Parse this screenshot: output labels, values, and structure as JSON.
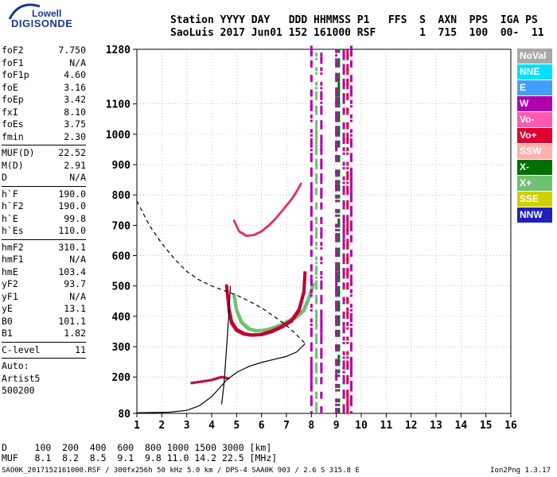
{
  "logo": {
    "line1": "Lowell",
    "line2": "DIGISONDE"
  },
  "header": {
    "row1": "Station YYYY DAY   DDD HHMMSS P1   FFS  S  AXN  PPS  IGA PS",
    "row2": "SaoLuis 2017 Jun01 152 161000 RSF       1  715  100  00-  11"
  },
  "params": {
    "group1": [
      {
        "k": "foF2",
        "v": "7.750"
      },
      {
        "k": "foF1",
        "v": "N/A"
      },
      {
        "k": "foF1p",
        "v": "4.60"
      },
      {
        "k": "foE",
        "v": "3.16"
      },
      {
        "k": "foEp",
        "v": "3.42"
      },
      {
        "k": "fxI",
        "v": "8.10"
      },
      {
        "k": "foEs",
        "v": "3.75"
      },
      {
        "k": "fmin",
        "v": "2.30"
      }
    ],
    "group2": [
      {
        "k": "MUF(D)",
        "v": "22.52"
      },
      {
        "k": "M(D)",
        "v": "2.91"
      },
      {
        "k": "D",
        "v": "N/A"
      }
    ],
    "group3": [
      {
        "k": "h`F",
        "v": "190.0"
      },
      {
        "k": "h`F2",
        "v": "190.0"
      },
      {
        "k": "h`E",
        "v": "99.8"
      },
      {
        "k": "h`Es",
        "v": "110.0"
      }
    ],
    "group4": [
      {
        "k": "hmF2",
        "v": "310.1"
      },
      {
        "k": "hmF1",
        "v": "N/A"
      },
      {
        "k": "hmE",
        "v": "103.4"
      },
      {
        "k": "yF2",
        "v": "93.7"
      },
      {
        "k": "yF1",
        "v": "N/A"
      },
      {
        "k": "yE",
        "v": "13.1"
      },
      {
        "k": "B0",
        "v": "101.1"
      },
      {
        "k": "B1",
        "v": "1.82"
      }
    ],
    "group5": [
      {
        "k": "C-level",
        "v": "11"
      }
    ],
    "group6": [
      "Auto:",
      "Artist5",
      "500200"
    ]
  },
  "legend": [
    {
      "label": "NoVal",
      "color": "#a8a8a8"
    },
    {
      "label": "NNE",
      "color": "#00e0ff"
    },
    {
      "label": "E",
      "color": "#40a0ff"
    },
    {
      "label": "W",
      "color": "#b000b0"
    },
    {
      "label": "Vo-",
      "color": "#ff5ab0"
    },
    {
      "label": "Vo+",
      "color": "#e00030"
    },
    {
      "label": "SSW",
      "color": "#ffb0b0"
    },
    {
      "label": "X-",
      "color": "#007000"
    },
    {
      "label": "X+",
      "color": "#70c070"
    },
    {
      "label": "SSE",
      "color": "#d0d000"
    },
    {
      "label": "NNW",
      "color": "#2020c0"
    }
  ],
  "muf_table": {
    "row1": "D     100  200  400  600  800 1000 1500 3000 [km]",
    "row2": "MUF   8.1  8.2  8.5  9.1  9.8 11.0 14.2 22.5 [MHz]"
  },
  "footer": {
    "left": "SAO0K_2017152161000.RSF / 300fx256h 50 kHz 5.0 km / DPS-4 SAA0K 903 / 2.6 S 315.8 E",
    "right": "Ion2Png 1.3.17"
  },
  "chart_data": {
    "type": "scatter",
    "xlim": [
      1,
      16
    ],
    "ylim": [
      80,
      1280
    ],
    "xticks": [
      1,
      2,
      3,
      4,
      5,
      6,
      7,
      8,
      9,
      10,
      11,
      12,
      13,
      14,
      15,
      16
    ],
    "yticks": [
      80,
      200,
      300,
      400,
      500,
      600,
      700,
      800,
      900,
      1000,
      1100,
      1280
    ],
    "grid": "dotted",
    "profile_line": [
      [
        1.0,
        82
      ],
      [
        2.3,
        84
      ],
      [
        3.0,
        90
      ],
      [
        3.5,
        105
      ],
      [
        4.0,
        135
      ],
      [
        4.6,
        190
      ],
      [
        5.0,
        215
      ],
      [
        5.5,
        235
      ],
      [
        6.0,
        248
      ],
      [
        6.5,
        258
      ],
      [
        7.0,
        268
      ],
      [
        7.4,
        282
      ],
      [
        7.75,
        310
      ]
    ],
    "profile_low_line": [
      [
        4.4,
        110
      ],
      [
        4.5,
        180
      ],
      [
        4.6,
        300
      ],
      [
        4.7,
        420
      ],
      [
        4.75,
        500
      ]
    ],
    "dashed_line": [
      [
        1.0,
        780
      ],
      [
        1.5,
        700
      ],
      [
        2.0,
        640
      ],
      [
        2.5,
        590
      ],
      [
        3.0,
        548
      ],
      [
        3.5,
        520
      ],
      [
        4.0,
        500
      ],
      [
        4.5,
        485
      ],
      [
        5.0,
        470
      ],
      [
        5.5,
        450
      ],
      [
        6.0,
        428
      ],
      [
        6.5,
        400
      ],
      [
        7.0,
        370
      ],
      [
        7.4,
        340
      ],
      [
        7.75,
        310
      ]
    ],
    "o_trace_vplus": [
      [
        4.6,
        500
      ],
      [
        4.7,
        420
      ],
      [
        4.8,
        380
      ],
      [
        5.0,
        355
      ],
      [
        5.3,
        342
      ],
      [
        5.6,
        338
      ],
      [
        6.0,
        340
      ],
      [
        6.4,
        350
      ],
      [
        6.8,
        365
      ],
      [
        7.2,
        385
      ],
      [
        7.5,
        420
      ],
      [
        7.7,
        480
      ],
      [
        7.75,
        550
      ]
    ],
    "x_trace_xplus": [
      [
        4.9,
        470
      ],
      [
        5.0,
        420
      ],
      [
        5.2,
        380
      ],
      [
        5.5,
        358
      ],
      [
        5.8,
        352
      ],
      [
        6.2,
        355
      ],
      [
        6.6,
        365
      ],
      [
        7.0,
        380
      ],
      [
        7.4,
        398
      ],
      [
        7.7,
        420
      ],
      [
        7.9,
        460
      ],
      [
        8.1,
        510
      ]
    ],
    "upper_trace": [
      [
        4.9,
        715
      ],
      [
        5.1,
        680
      ],
      [
        5.4,
        665
      ],
      [
        5.7,
        668
      ],
      [
        6.0,
        680
      ],
      [
        6.3,
        700
      ],
      [
        6.6,
        725
      ],
      [
        6.9,
        755
      ],
      [
        7.2,
        785
      ],
      [
        7.4,
        810
      ],
      [
        7.6,
        840
      ]
    ],
    "es_trace": [
      [
        3.2,
        180
      ],
      [
        3.6,
        185
      ],
      [
        4.0,
        190
      ],
      [
        4.4,
        200
      ],
      [
        4.7,
        195
      ]
    ],
    "vertical_bands": [
      {
        "x": 8.0,
        "color": "#b000b0"
      },
      {
        "x": 8.4,
        "color": "#b000b0"
      },
      {
        "x": 9.0,
        "color": "#b000b0"
      },
      {
        "x": 9.3,
        "color": "#b000b0"
      },
      {
        "x": 9.6,
        "color": "#b000b0"
      },
      {
        "x": 8.2,
        "color": "#70c070"
      },
      {
        "x": 9.1,
        "color": "#007000"
      },
      {
        "x": 9.45,
        "color": "#e00030"
      }
    ]
  }
}
